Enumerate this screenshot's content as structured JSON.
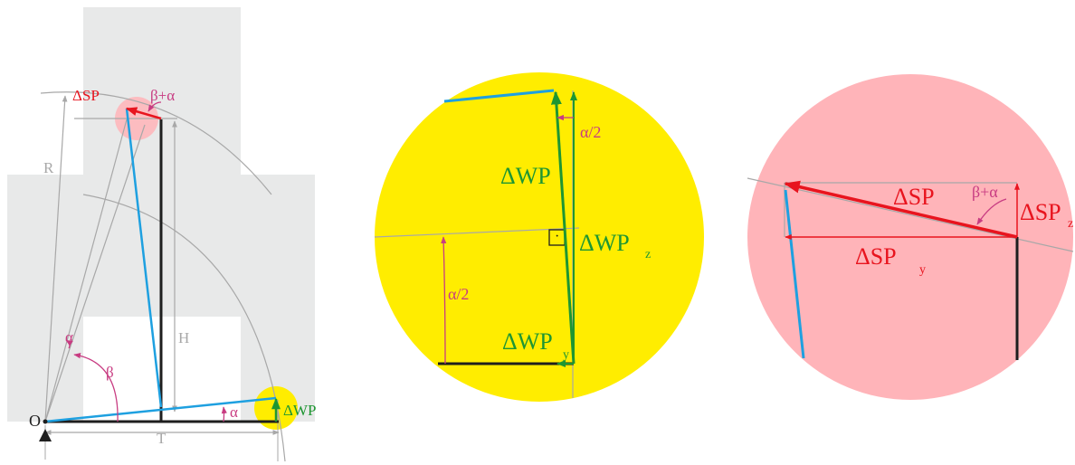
{
  "colors": {
    "panel_gray": "#e8e9e9",
    "guide_gray": "#a8a8a8",
    "structure_black": "#1e1e1e",
    "beam_blue": "#1ea0e0",
    "delta_wp_green": "#1e9632",
    "delta_sp_red": "#e8141e",
    "angle_magenta": "#c83c82",
    "yellow_disc": "#ffed00",
    "pink_disc": "#ffb4b9"
  },
  "left_panel": {
    "labels": {
      "delta_sp": "ΔSP",
      "beta_plus_alpha": "β+α",
      "radius": "R",
      "height": "H",
      "alpha_upper": "α",
      "beta": "β",
      "alpha_lower": "α",
      "delta_wp": "ΔWP",
      "origin": "O",
      "width": "T"
    }
  },
  "middle_panel": {
    "labels": {
      "delta_wp": "ΔWP",
      "alpha_half_top": "α/2",
      "alpha_half_left": "α/2",
      "delta_wp_z": "ΔWP",
      "delta_wp_z_sub": "z",
      "delta_wp_y": "ΔWP",
      "delta_wp_y_sub": "y",
      "right_angle_dot": "·"
    }
  },
  "right_panel": {
    "labels": {
      "delta_sp": "ΔSP",
      "beta_plus_alpha": "β+α",
      "delta_sp_z": "ΔSP",
      "delta_sp_z_sub": "z",
      "delta_sp_y": "ΔSP",
      "delta_sp_y_sub": "y"
    }
  }
}
